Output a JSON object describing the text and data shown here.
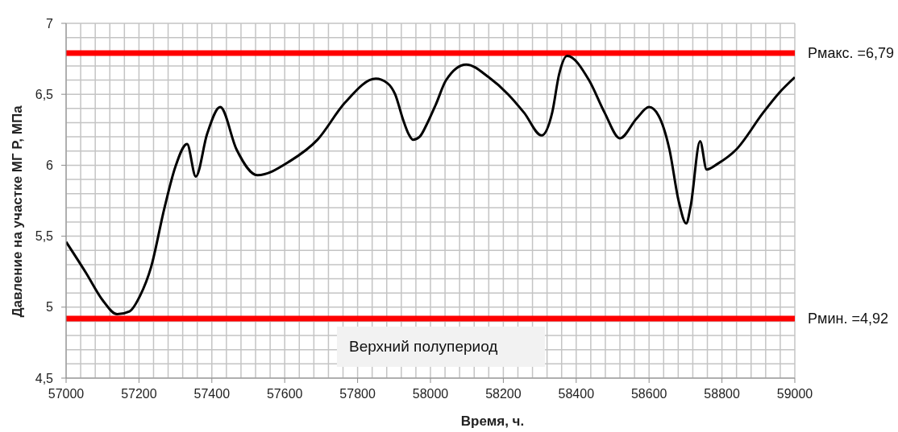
{
  "chart_data": {
    "type": "line",
    "xlabel": "Время, ч.",
    "ylabel": "Давление на участке МГ Р, МПа",
    "annotations": [
      "Верхний полупериод"
    ],
    "x": [
      57000,
      57055,
      57100,
      57140,
      57174,
      57203,
      57233,
      57270,
      57300,
      57332,
      57356,
      57387,
      57423,
      57468,
      57525,
      57615,
      57690,
      57765,
      57850,
      57881,
      57903,
      57925,
      57940,
      57952,
      57970,
      57992,
      58015,
      58043,
      58098,
      58160,
      58213,
      58257,
      58305,
      58334,
      58353,
      58375,
      58435,
      58478,
      58520,
      58566,
      58600,
      58626,
      58656,
      58681,
      58702,
      58714,
      58740,
      58758,
      58788,
      58839,
      58913,
      58957,
      59000
    ],
    "values": [
      5.46,
      5.24,
      5.05,
      4.95,
      4.97,
      5.08,
      5.28,
      5.7,
      5.99,
      6.15,
      5.92,
      6.22,
      6.41,
      6.11,
      5.93,
      6.03,
      6.18,
      6.44,
      6.61,
      6.58,
      6.5,
      6.32,
      6.22,
      6.18,
      6.2,
      6.3,
      6.43,
      6.6,
      6.71,
      6.62,
      6.5,
      6.37,
      6.21,
      6.37,
      6.64,
      6.77,
      6.6,
      6.37,
      6.19,
      6.33,
      6.41,
      6.35,
      6.11,
      5.75,
      5.59,
      5.71,
      6.17,
      5.97,
      6.01,
      6.11,
      6.37,
      6.51,
      6.62
    ],
    "color": "#000000",
    "marker": "none",
    "xlim": [
      57000,
      59000
    ],
    "xticks": [
      57000,
      57200,
      57400,
      57600,
      57800,
      58000,
      58200,
      58400,
      58600,
      58800,
      59000
    ],
    "ylim": [
      4.5,
      7
    ],
    "yticks": [
      {
        "value": 4.5,
        "label": "4,5"
      },
      5,
      {
        "value": 5.5,
        "label": "5,5"
      },
      6,
      {
        "value": 6.5,
        "label": "6,5"
      },
      7
    ],
    "ref_lines": [
      {
        "axis": "y",
        "value": 6.79,
        "label": "Рмакс. =6,79",
        "color": "#ff0000"
      },
      {
        "axis": "y",
        "value": 4.92,
        "label": "Рмин. =4,92",
        "color": "#ff0000"
      }
    ],
    "grid": true
  }
}
